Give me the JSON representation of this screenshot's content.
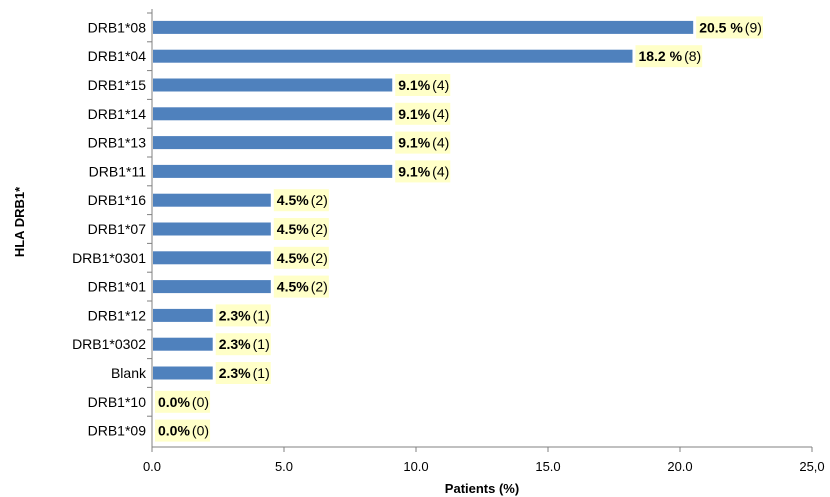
{
  "chart_data": {
    "type": "bar",
    "orientation": "horizontal",
    "title": "",
    "xlabel": "Patients (%)",
    "ylabel": "HLA DRB1*",
    "categories": [
      "DRB1*08",
      "DRB1*04",
      "DRB1*15",
      "DRB1*14",
      "DRB1*13",
      "DRB1*11",
      "DRB1*16",
      "DRB1*07",
      "DRB1*0301",
      "DRB1*01",
      "DRB1*12",
      "DRB1*0302",
      "Blank",
      "DRB1*10",
      "DRB1*09"
    ],
    "values": [
      20.5,
      18.2,
      9.1,
      9.1,
      9.1,
      9.1,
      4.5,
      4.5,
      4.5,
      4.5,
      2.3,
      2.3,
      2.3,
      0.0,
      0.0
    ],
    "counts": [
      9,
      8,
      4,
      4,
      4,
      4,
      2,
      2,
      2,
      2,
      1,
      1,
      1,
      0,
      0
    ],
    "data_labels": [
      "20.5 %",
      "18.2 %",
      "9.1%",
      "9.1%",
      "9.1%",
      "9.1%",
      "4.5%",
      "4.5%",
      "4.5%",
      "4.5%",
      "2.3%",
      "2.3%",
      "2.3%",
      "0.0%",
      "0.0%"
    ],
    "count_labels": [
      "(9)",
      "(8)",
      "(4)",
      "(4)",
      "(4)",
      "(4)",
      "(2)",
      "(2)",
      "(2)",
      "(2)",
      "(1)",
      "(1)",
      "(1)",
      "(0)",
      "(0)"
    ],
    "xlim": [
      0,
      25
    ],
    "xticks": [
      0,
      5,
      10,
      15,
      20,
      25
    ],
    "xtick_labels": [
      "0.0",
      "5.0",
      "10.0",
      "15.0",
      "20.0",
      "25,0"
    ],
    "grid": false,
    "colors": {
      "bar": "#4f81bd",
      "label_bg": "#ffffc8"
    }
  }
}
